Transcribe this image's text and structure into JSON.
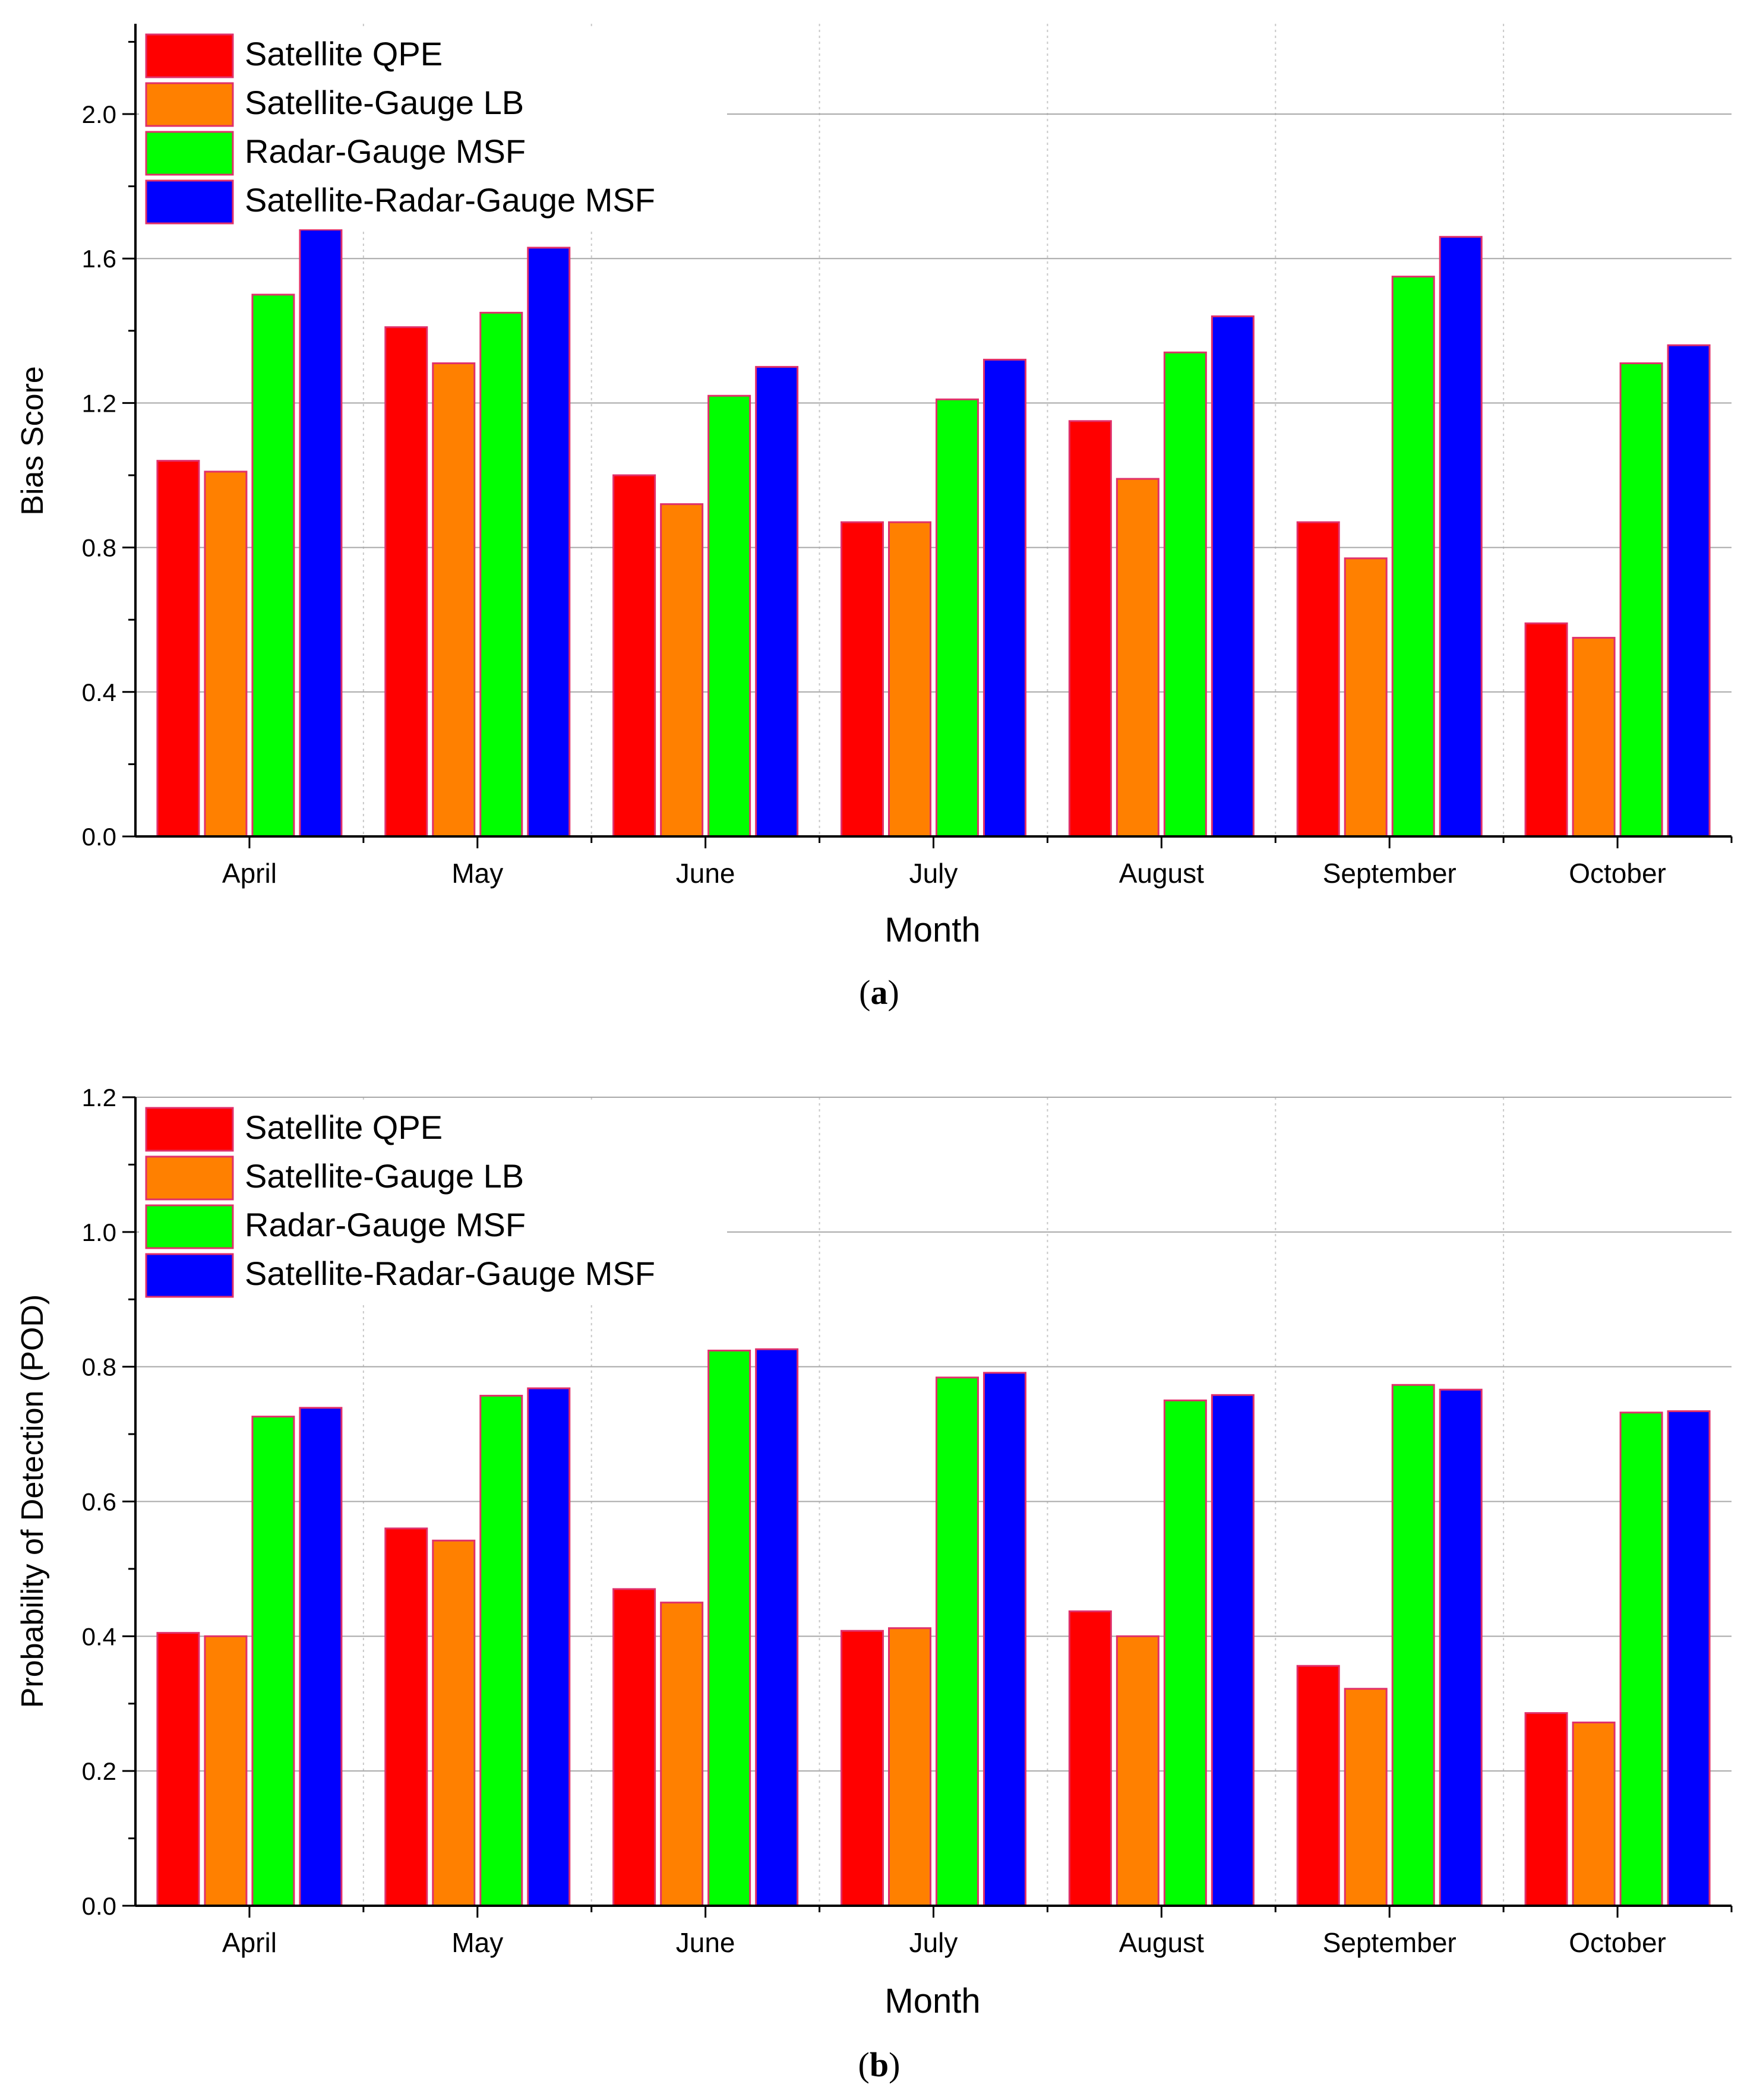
{
  "chart_data": [
    {
      "type": "bar",
      "title": "",
      "xlabel": "Month",
      "ylabel": "Bias Score",
      "ylim": [
        0,
        2.25
      ],
      "yticks": [
        0.0,
        0.4,
        0.8,
        1.2,
        1.6,
        2.0
      ],
      "ytick_labels": [
        "0.0",
        "0.4",
        "0.8",
        "1.2",
        "1.6",
        "2.0"
      ],
      "grid": true,
      "legend_position": "top-left",
      "categories": [
        "April",
        "May",
        "June",
        "July",
        "August",
        "September",
        "October"
      ],
      "series": [
        {
          "name": "Satellite QPE",
          "color": "#ff0000",
          "values": [
            1.04,
            1.41,
            1.0,
            0.87,
            1.15,
            0.87,
            0.59
          ]
        },
        {
          "name": "Satellite-Gauge LB",
          "color": "#ff8000",
          "values": [
            1.01,
            1.31,
            0.92,
            0.87,
            0.99,
            0.77,
            0.55
          ]
        },
        {
          "name": "Radar-Gauge MSF",
          "color": "#00ff00",
          "values": [
            1.5,
            1.45,
            1.22,
            1.21,
            1.34,
            1.55,
            1.31
          ]
        },
        {
          "name": "Satellite-Radar-Gauge MSF",
          "color": "#0000ff",
          "values": [
            1.68,
            1.63,
            1.3,
            1.32,
            1.44,
            1.66,
            1.36
          ]
        }
      ],
      "caption": "a"
    },
    {
      "type": "bar",
      "title": "",
      "xlabel": "Month",
      "ylabel": "Probability of Detection (POD)",
      "ylim": [
        0,
        1.2
      ],
      "yticks": [
        0.0,
        0.2,
        0.4,
        0.6,
        0.8,
        1.0,
        1.2
      ],
      "ytick_labels": [
        "0.0",
        "0.2",
        "0.4",
        "0.6",
        "0.8",
        "1.0",
        "1.2"
      ],
      "grid": true,
      "legend_position": "top-left",
      "categories": [
        "April",
        "May",
        "June",
        "July",
        "August",
        "September",
        "October"
      ],
      "series": [
        {
          "name": "Satellite QPE",
          "color": "#ff0000",
          "values": [
            0.405,
            0.56,
            0.47,
            0.408,
            0.437,
            0.356,
            0.286
          ]
        },
        {
          "name": "Satellite-Gauge LB",
          "color": "#ff8000",
          "values": [
            0.4,
            0.542,
            0.45,
            0.412,
            0.4,
            0.322,
            0.272
          ]
        },
        {
          "name": "Radar-Gauge MSF",
          "color": "#00ff00",
          "values": [
            0.726,
            0.757,
            0.824,
            0.784,
            0.75,
            0.773,
            0.732
          ]
        },
        {
          "name": "Satellite-Radar-Gauge MSF",
          "color": "#0000ff",
          "values": [
            0.739,
            0.768,
            0.826,
            0.791,
            0.758,
            0.766,
            0.734
          ]
        }
      ],
      "caption": "b"
    }
  ]
}
